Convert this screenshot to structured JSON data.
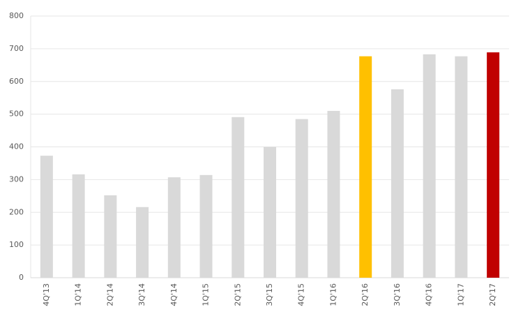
{
  "chart_data": {
    "type": "bar",
    "categories": [
      "4Q'13",
      "1Q'14",
      "2Q'14",
      "3Q'14",
      "4Q'14",
      "1Q'15",
      "2Q'15",
      "3Q'15",
      "4Q'15",
      "1Q'16",
      "2Q'16",
      "3Q'16",
      "4Q'16",
      "1Q'17",
      "2Q'17"
    ],
    "values": [
      373,
      316,
      252,
      216,
      307,
      314,
      491,
      400,
      485,
      510,
      677,
      576,
      683,
      677,
      689
    ],
    "colors": [
      "#d9d9d9",
      "#d9d9d9",
      "#d9d9d9",
      "#d9d9d9",
      "#d9d9d9",
      "#d9d9d9",
      "#d9d9d9",
      "#d9d9d9",
      "#d9d9d9",
      "#d9d9d9",
      "#ffc000",
      "#d9d9d9",
      "#d9d9d9",
      "#d9d9d9",
      "#c00000"
    ],
    "ylim": [
      0,
      800
    ],
    "yticks": [
      0,
      100,
      200,
      300,
      400,
      500,
      600,
      700,
      800
    ],
    "grid": true
  }
}
